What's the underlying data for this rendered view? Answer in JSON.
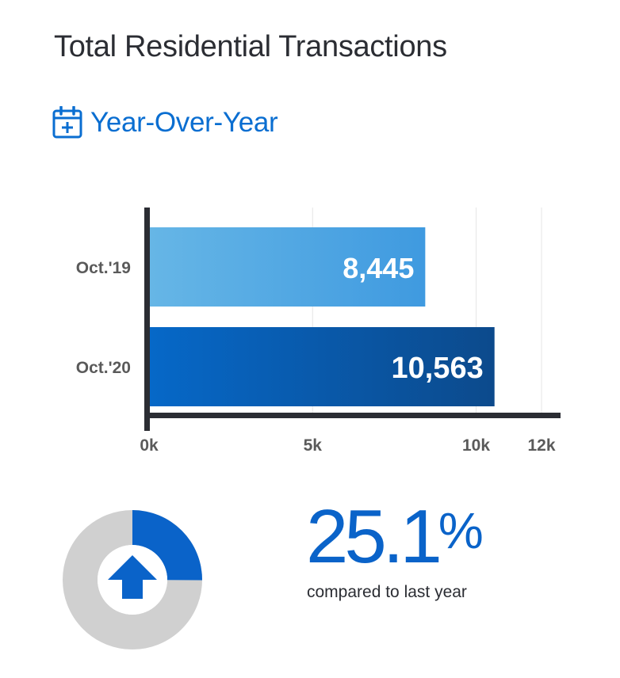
{
  "header": {
    "title": "Total Residential Transactions",
    "subtitle": "Year-Over-Year",
    "subtitle_icon": "calendar-plus-icon"
  },
  "colors": {
    "bar_2019": "#5aaee3",
    "bar_2020": "#0a5fb4",
    "axis": "#2b2d33",
    "accent": "#0a63c9",
    "donut_track": "#d0d0d0"
  },
  "chart_data": {
    "type": "bar",
    "orientation": "horizontal",
    "categories": [
      "Oct.'19",
      "Oct.'20"
    ],
    "values": [
      8445,
      10563
    ],
    "value_labels": [
      "8,445",
      "10,563"
    ],
    "xticks": [
      "0k",
      "5k",
      "10k",
      "12k"
    ],
    "xtick_values": [
      0,
      5000,
      10000,
      12000
    ],
    "xlim": [
      0,
      12500
    ],
    "grid": true
  },
  "change": {
    "percent_number": "25.1",
    "percent_sign": "%",
    "caption": "compared to last year",
    "icon": "arrow-up-icon",
    "donut_fraction": 0.251
  }
}
